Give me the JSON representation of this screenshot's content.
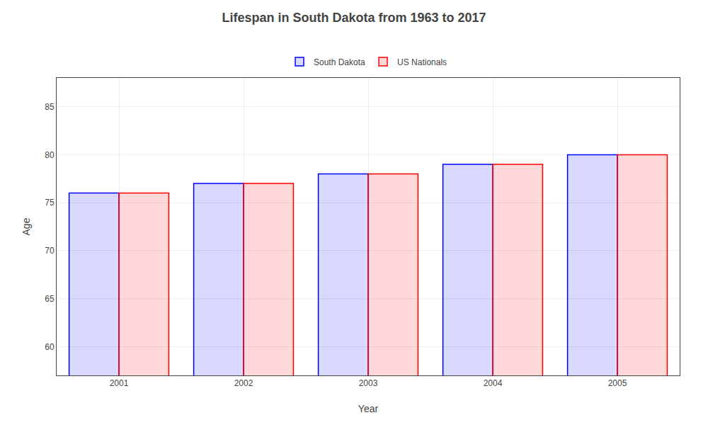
{
  "chart_data": {
    "type": "bar",
    "title": "Lifespan in South Dakota from 1963 to 2017",
    "x_label": "Year",
    "y_label": "Age",
    "categories": [
      "2001",
      "2002",
      "2003",
      "2004",
      "2005"
    ],
    "series": [
      {
        "name": "South Dakota",
        "color": "#0000ff",
        "values": [
          76,
          77,
          78,
          79,
          80
        ]
      },
      {
        "name": "US Nationals",
        "color": "#ff0000",
        "values": [
          76,
          77,
          78,
          79,
          80
        ]
      }
    ],
    "ylim": [
      57,
      88
    ],
    "yticks": [
      60,
      65,
      70,
      75,
      80,
      85
    ],
    "grid": true,
    "legend": "top"
  }
}
